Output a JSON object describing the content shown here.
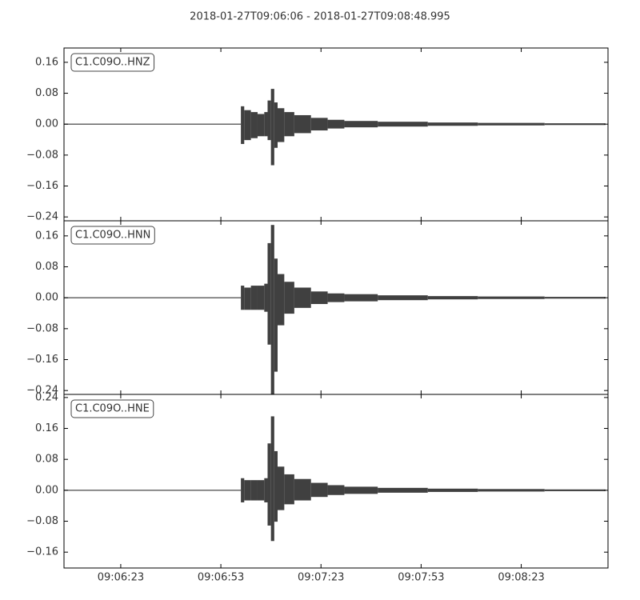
{
  "title": "2018-01-27T09:06:06  -  2018-01-27T09:08:48.995",
  "chart_data": [
    {
      "type": "waveform",
      "label": "C1.C09O..HNZ",
      "color": "#404040",
      "xlim": [
        "09:06:06",
        "09:08:48.995"
      ],
      "ylim": [
        -0.25,
        0.197
      ],
      "yticks": [
        {
          "value": -0.24,
          "label": "−0.24"
        },
        {
          "value": -0.16,
          "label": "−0.16"
        },
        {
          "value": -0.08,
          "label": "−0.08"
        },
        {
          "value": 0,
          "label": "0.00"
        },
        0.08,
        0.16
      ],
      "x": [
        "09:06:06",
        "09:06:59",
        "09:07:00",
        "09:07:02",
        "09:07:04",
        "09:07:06",
        "09:07:07",
        "09:07:08",
        "09:07:09",
        "09:07:10",
        "09:07:12",
        "09:07:15",
        "09:07:20",
        "09:07:25",
        "09:07:30",
        "09:07:40",
        "09:07:55",
        "09:08:10",
        "09:08:30",
        "09:08:48"
      ],
      "upper": [
        0,
        0.045,
        0.035,
        0.03,
        0.025,
        0.03,
        0.06,
        0.09,
        0.055,
        0.04,
        0.03,
        0.022,
        0.015,
        0.01,
        0.007,
        0.005,
        0.003,
        0.002,
        0.001,
        0.001
      ],
      "lower": [
        0,
        -0.05,
        -0.04,
        -0.035,
        -0.03,
        -0.03,
        -0.04,
        -0.105,
        -0.06,
        -0.045,
        -0.03,
        -0.022,
        -0.015,
        -0.01,
        -0.007,
        -0.005,
        -0.003,
        -0.002,
        -0.001,
        -0.001
      ]
    },
    {
      "type": "waveform",
      "label": "C1.C09O..HNN",
      "color": "#404040",
      "xlim": [
        "09:06:06",
        "09:08:48.995"
      ],
      "ylim": [
        -0.25,
        0.199
      ],
      "yticks": [
        {
          "value": -0.24,
          "label": "−0.24"
        },
        {
          "value": -0.16,
          "label": "−0.16"
        },
        {
          "value": -0.08,
          "label": "−0.08"
        },
        {
          "value": 0,
          "label": "0.00"
        },
        0.08,
        0.16
      ],
      "x": [
        "09:06:06",
        "09:06:59",
        "09:07:00",
        "09:07:02",
        "09:07:04",
        "09:07:06",
        "09:07:07",
        "09:07:08",
        "09:07:09",
        "09:07:10",
        "09:07:12",
        "09:07:15",
        "09:07:20",
        "09:07:25",
        "09:07:30",
        "09:07:40",
        "09:07:55",
        "09:08:10",
        "09:08:30",
        "09:08:48"
      ],
      "upper": [
        0,
        0.03,
        0.025,
        0.03,
        0.03,
        0.035,
        0.14,
        0.187,
        0.1,
        0.06,
        0.04,
        0.025,
        0.015,
        0.01,
        0.008,
        0.005,
        0.003,
        0.002,
        0.001,
        0.001
      ],
      "lower": [
        0,
        -0.03,
        -0.03,
        -0.03,
        -0.03,
        -0.035,
        -0.12,
        -0.25,
        -0.19,
        -0.07,
        -0.04,
        -0.025,
        -0.015,
        -0.01,
        -0.008,
        -0.005,
        -0.003,
        -0.002,
        -0.001,
        -0.001
      ]
    },
    {
      "type": "waveform",
      "label": "C1.C09O..HNE",
      "color": "#404040",
      "xlim": [
        "09:06:06",
        "09:08:48.995"
      ],
      "ylim": [
        -0.201,
        0.248
      ],
      "yticks": [
        {
          "value": -0.16,
          "label": "−0.16"
        },
        {
          "value": -0.08,
          "label": "−0.08"
        },
        {
          "value": 0,
          "label": "0.00"
        },
        0.08,
        0.16,
        0.24
      ],
      "xticks": [
        "09:06:23",
        "09:06:53",
        "09:07:23",
        "09:07:53",
        "09:08:23"
      ],
      "x": [
        "09:06:06",
        "09:06:59",
        "09:07:00",
        "09:07:02",
        "09:07:04",
        "09:07:06",
        "09:07:07",
        "09:07:08",
        "09:07:09",
        "09:07:10",
        "09:07:12",
        "09:07:15",
        "09:07:20",
        "09:07:25",
        "09:07:30",
        "09:07:40",
        "09:07:55",
        "09:08:10",
        "09:08:30",
        "09:08:48"
      ],
      "upper": [
        0,
        0.03,
        0.025,
        0.025,
        0.025,
        0.03,
        0.12,
        0.19,
        0.1,
        0.06,
        0.04,
        0.028,
        0.018,
        0.012,
        0.008,
        0.005,
        0.003,
        0.002,
        0.001,
        0.001
      ],
      "lower": [
        0,
        -0.03,
        -0.025,
        -0.025,
        -0.025,
        -0.03,
        -0.09,
        -0.13,
        -0.08,
        -0.05,
        -0.035,
        -0.025,
        -0.016,
        -0.011,
        -0.008,
        -0.005,
        -0.003,
        -0.002,
        -0.001,
        -0.001
      ]
    }
  ]
}
